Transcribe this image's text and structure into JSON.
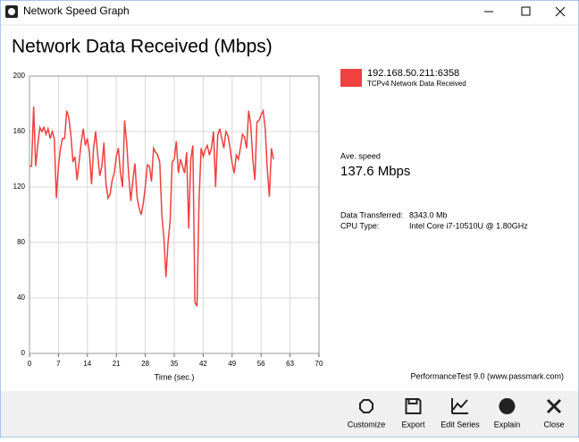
{
  "window": {
    "title": "Network Speed Graph"
  },
  "chart_data": {
    "type": "line",
    "title": "Network Data Received (Mbps)",
    "x_label": "Time (sec.)",
    "x": [
      0,
      0.5,
      1,
      1.5,
      2,
      2.5,
      3,
      3.5,
      4,
      4.5,
      5,
      5.5,
      6,
      6.5,
      7,
      7.5,
      8,
      8.5,
      9,
      9.5,
      10,
      10.5,
      11,
      11.5,
      12,
      12.5,
      13,
      13.5,
      14,
      14.5,
      15,
      15.5,
      16,
      16.5,
      17,
      17.5,
      18,
      18.5,
      19,
      19.5,
      20,
      20.5,
      21,
      21.5,
      22,
      22.5,
      23,
      23.5,
      24,
      24.5,
      25,
      25.5,
      26,
      26.5,
      27,
      27.5,
      28,
      28.5,
      29,
      29.5,
      30,
      30.5,
      31,
      31.5,
      32,
      32.5,
      33,
      33.5,
      34,
      34.5,
      35,
      35.5,
      36,
      36.5,
      37,
      37.5,
      38,
      38.5,
      39,
      39.5,
      40,
      40.5,
      41,
      41.5,
      42,
      42.5,
      43,
      43.5,
      44,
      44.5,
      45,
      45.5,
      46,
      46.5,
      47,
      47.5,
      48,
      48.5,
      49,
      49.5,
      50,
      50.5,
      51,
      51.5,
      52,
      52.5,
      53,
      53.5,
      54,
      54.5,
      55,
      55.5,
      56,
      56.5,
      57,
      57.5,
      58,
      58.5,
      59
    ],
    "series": [
      {
        "name": "192.168.50.211:6358",
        "description": "TCPv4 Network Data Received",
        "color": "#f04040",
        "values": [
          135,
          135,
          178,
          135,
          150,
          163,
          160,
          163,
          158,
          162,
          155,
          160,
          155,
          112,
          135,
          148,
          155,
          155,
          175,
          170,
          158,
          138,
          142,
          125,
          138,
          152,
          162,
          150,
          155,
          145,
          122,
          148,
          160,
          143,
          128,
          135,
          152,
          122,
          112,
          115,
          125,
          130,
          142,
          148,
          130,
          120,
          168,
          152,
          128,
          110,
          125,
          137,
          113,
          105,
          100,
          108,
          120,
          136,
          135,
          124,
          148,
          145,
          143,
          138,
          100,
          83,
          55,
          80,
          95,
          138,
          140,
          153,
          130,
          140,
          135,
          130,
          145,
          90,
          140,
          150,
          37,
          34,
          110,
          148,
          142,
          147,
          150,
          143,
          148,
          160,
          120,
          157,
          162,
          155,
          148,
          160,
          157,
          148,
          137,
          130,
          143,
          140,
          148,
          158,
          156,
          148,
          175,
          165,
          140,
          125,
          167,
          168,
          172,
          175,
          162,
          133,
          113,
          148,
          140
        ]
      }
    ],
    "xlim": [
      0,
      70
    ],
    "xticks": [
      0,
      7,
      14,
      21,
      28,
      35,
      42,
      49,
      56,
      63,
      70
    ],
    "ylim": [
      0,
      200
    ],
    "yticks": [
      0,
      40,
      80,
      120,
      160,
      200
    ],
    "grid": true
  },
  "stats": {
    "avg_label": "Ave. speed",
    "avg_value": "137.6 Mbps",
    "rows": [
      [
        "Data Transferred:",
        "8343.0 Mb"
      ],
      [
        "CPU Type:",
        "Intel Core i7-10510U @ 1.80GHz"
      ]
    ],
    "credit": "PerformanceTest 9.0 (www.passmark.com)"
  },
  "toolbar": {
    "buttons": [
      "Customize",
      "Export",
      "Edit Series",
      "Explain",
      "Close"
    ]
  }
}
